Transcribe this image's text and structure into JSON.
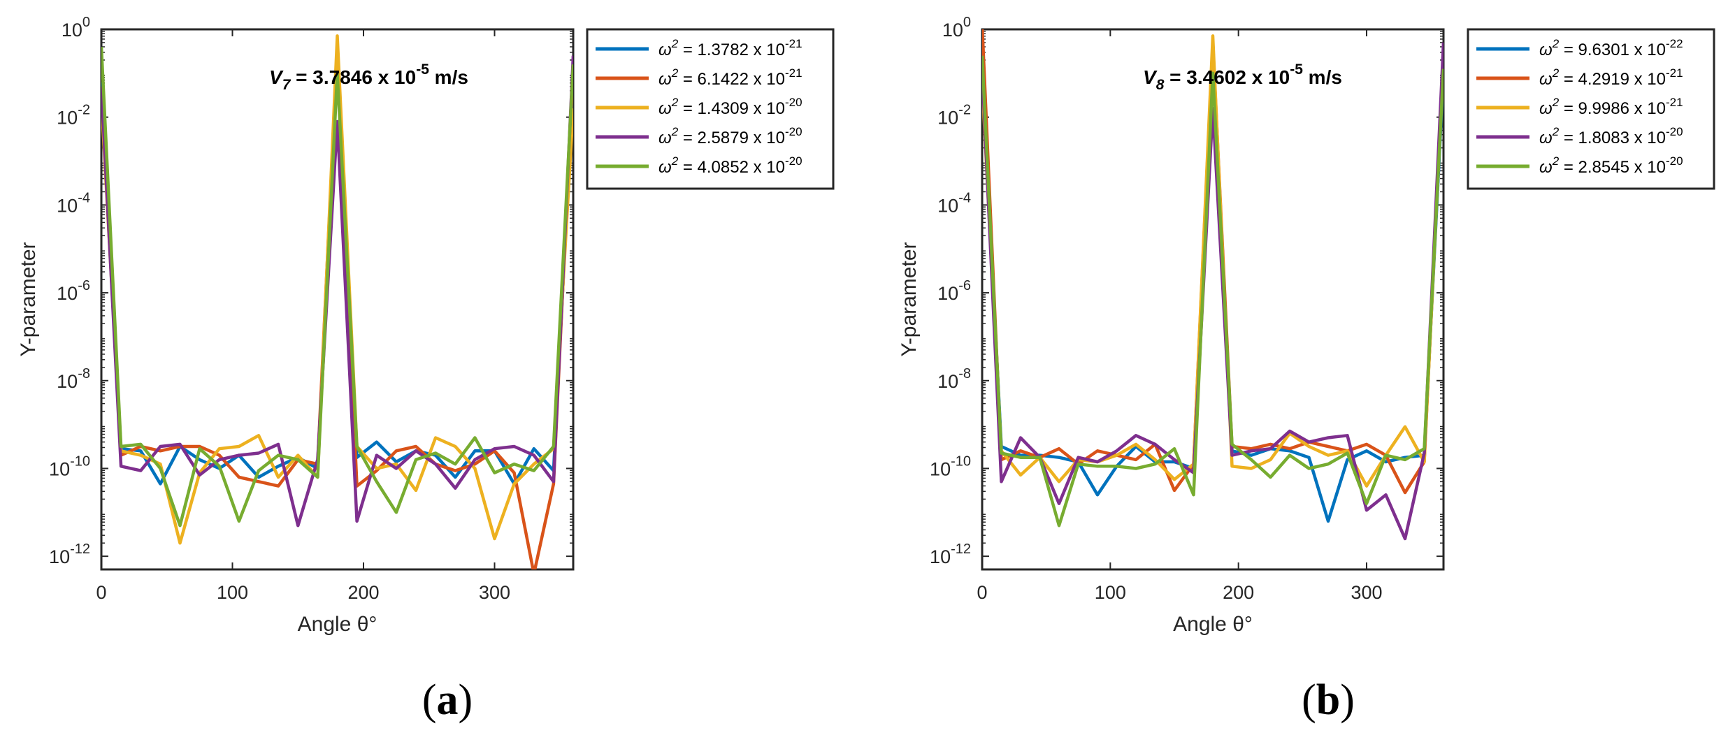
{
  "chart_data": [
    {
      "type": "line",
      "panel_label": "a",
      "annotation": {
        "var": "V",
        "sub": "7",
        "value": "= 3.7846 x 10",
        "exp": "-5",
        "unit": " m/s"
      },
      "xlabel": "Angle θ°",
      "ylabel": "Y-parameter",
      "xlim": [
        0,
        360
      ],
      "ylim_log10": [
        -12.3,
        0
      ],
      "xticks": [
        0,
        100,
        200,
        300
      ],
      "yticks_exp": [
        0,
        -2,
        -4,
        -6,
        -8,
        -10,
        -12
      ],
      "x": [
        0,
        15,
        30,
        45,
        60,
        75,
        90,
        105,
        120,
        135,
        150,
        165,
        180,
        195,
        210,
        225,
        240,
        255,
        270,
        285,
        300,
        315,
        330,
        345,
        360
      ],
      "series": [
        {
          "name": "ω² = 1.3782 x 10⁻²¹",
          "label_value": "= 1.3782 x 10",
          "label_exp": "-21",
          "color": "#0072BD",
          "values": [
            -1.2,
            -9.55,
            -9.6,
            -10.35,
            -9.5,
            -9.8,
            -10.0,
            -9.7,
            -10.2,
            -9.95,
            -9.75,
            -10.0,
            -0.8,
            -9.75,
            -9.4,
            -9.85,
            -9.6,
            -9.7,
            -10.2,
            -9.6,
            -9.6,
            -10.35,
            -9.55,
            -10.05,
            -1.2
          ]
        },
        {
          "name": "ω² = 6.1422 x 10⁻²¹",
          "label_value": "= 6.1422 x 10",
          "label_exp": "-21",
          "color": "#D95319",
          "values": [
            -1.4,
            -9.7,
            -9.5,
            -9.6,
            -9.5,
            -9.5,
            -9.7,
            -10.2,
            -10.3,
            -10.4,
            -9.8,
            -9.9,
            -0.5,
            -10.4,
            -10.05,
            -9.6,
            -9.5,
            -9.9,
            -10.05,
            -9.9,
            -9.6,
            -10.1,
            -12.4,
            -10.35,
            -0.9
          ]
        },
        {
          "name": "ω² = 1.4309 x 10⁻²⁰",
          "label_value": "= 1.4309 x 10",
          "label_exp": "-20",
          "color": "#EDB120",
          "values": [
            -1.6,
            -9.6,
            -9.7,
            -9.9,
            -11.7,
            -10.1,
            -9.55,
            -9.5,
            -9.25,
            -10.2,
            -9.7,
            -10.2,
            -0.15,
            -9.5,
            -10.0,
            -9.9,
            -10.5,
            -9.3,
            -9.5,
            -10.0,
            -11.6,
            -10.35,
            -9.9,
            -9.55,
            -1.8
          ]
        },
        {
          "name": "ω² = 2.5879 x 10⁻²⁰",
          "label_value": "= 2.5879 x 10",
          "label_exp": "-20",
          "color": "#7E2F8E",
          "values": [
            -1.3,
            -9.95,
            -10.05,
            -9.5,
            -9.45,
            -10.15,
            -9.8,
            -9.7,
            -9.65,
            -9.45,
            -11.3,
            -9.8,
            -2.1,
            -11.2,
            -9.7,
            -10.0,
            -9.6,
            -9.9,
            -10.45,
            -9.8,
            -9.55,
            -9.5,
            -9.7,
            -10.3,
            -0.6
          ]
        },
        {
          "name": "ω² = 4.0852 x 10⁻²⁰",
          "label_value": "= 4.0852 x 10",
          "label_exp": "-20",
          "color": "#77AC30",
          "values": [
            -0.4,
            -9.5,
            -9.45,
            -10.0,
            -11.3,
            -9.55,
            -9.95,
            -11.2,
            -10.05,
            -9.7,
            -9.8,
            -10.2,
            -1.0,
            -9.5,
            -10.3,
            -11.0,
            -9.8,
            -9.65,
            -9.9,
            -9.3,
            -10.1,
            -9.9,
            -10.05,
            -9.5,
            -0.8
          ]
        }
      ]
    },
    {
      "type": "line",
      "panel_label": "b",
      "annotation": {
        "var": "V",
        "sub": "8",
        "value": "= 3.4602 x 10",
        "exp": "-5",
        "unit": " m/s"
      },
      "xlabel": "Angle θ°",
      "ylabel": "Y-parameter",
      "xlim": [
        0,
        360
      ],
      "ylim_log10": [
        -12.3,
        0
      ],
      "xticks": [
        0,
        100,
        200,
        300
      ],
      "yticks_exp": [
        0,
        -2,
        -4,
        -6,
        -8,
        -10,
        -12
      ],
      "x": [
        0,
        15,
        30,
        45,
        60,
        75,
        90,
        105,
        120,
        135,
        150,
        165,
        180,
        195,
        210,
        225,
        240,
        255,
        270,
        285,
        300,
        315,
        330,
        345,
        360
      ],
      "series": [
        {
          "name": "ω² = 9.6301 x 10⁻²²",
          "label_value": "= 9.6301 x 10",
          "label_exp": "-22",
          "color": "#0072BD",
          "values": [
            -1.0,
            -9.5,
            -9.7,
            -9.7,
            -9.75,
            -9.85,
            -10.6,
            -9.95,
            -9.5,
            -9.85,
            -9.85,
            -10.0,
            -0.4,
            -9.6,
            -9.7,
            -9.55,
            -9.6,
            -9.75,
            -11.2,
            -9.8,
            -9.6,
            -9.85,
            -9.75,
            -9.7,
            -1.0
          ]
        },
        {
          "name": "ω² = 4.2919 x 10⁻²¹",
          "label_value": "= 4.2919 x 10",
          "label_exp": "-21",
          "color": "#D95319",
          "values": [
            0.1,
            -9.8,
            -9.6,
            -9.75,
            -9.55,
            -9.9,
            -9.6,
            -9.7,
            -9.8,
            -9.45,
            -10.5,
            -9.9,
            -0.3,
            -9.5,
            -9.55,
            -9.45,
            -9.55,
            -9.4,
            -9.5,
            -9.6,
            -9.45,
            -9.7,
            -10.55,
            -9.85,
            -0.6
          ]
        },
        {
          "name": "ω² = 9.9986 x 10⁻²¹",
          "label_value": "= 9.9986 x 10",
          "label_exp": "-21",
          "color": "#EDB120",
          "values": [
            -1.2,
            -9.6,
            -10.15,
            -9.75,
            -10.3,
            -9.8,
            -9.85,
            -9.7,
            -9.45,
            -9.8,
            -10.25,
            -9.9,
            -0.15,
            -9.95,
            -10.0,
            -9.8,
            -9.2,
            -9.5,
            -9.7,
            -9.6,
            -10.4,
            -9.7,
            -9.05,
            -9.85,
            -0.7
          ]
        },
        {
          "name": "ω² = 1.8083 x 10⁻²⁰",
          "label_value": "= 1.8083 x 10",
          "label_exp": "-20",
          "color": "#7E2F8E",
          "values": [
            -0.9,
            -10.3,
            -9.3,
            -9.75,
            -10.8,
            -9.75,
            -9.85,
            -9.6,
            -9.25,
            -9.45,
            -9.8,
            -10.1,
            -1.8,
            -9.7,
            -9.6,
            -9.55,
            -9.15,
            -9.4,
            -9.3,
            -9.25,
            -10.95,
            -10.6,
            -11.6,
            -9.65,
            -0.3
          ]
        },
        {
          "name": "ω² = 2.8545 x 10⁻²⁰",
          "label_value": "= 2.8545 x 10",
          "label_exp": "-20",
          "color": "#77AC30",
          "values": [
            -0.6,
            -9.65,
            -9.75,
            -9.75,
            -11.3,
            -9.9,
            -9.95,
            -9.95,
            -10.0,
            -9.9,
            -9.55,
            -10.6,
            -1.0,
            -9.45,
            -9.8,
            -10.2,
            -9.7,
            -10.0,
            -9.9,
            -9.65,
            -10.8,
            -9.7,
            -9.8,
            -9.55,
            -0.9
          ]
        }
      ]
    }
  ]
}
